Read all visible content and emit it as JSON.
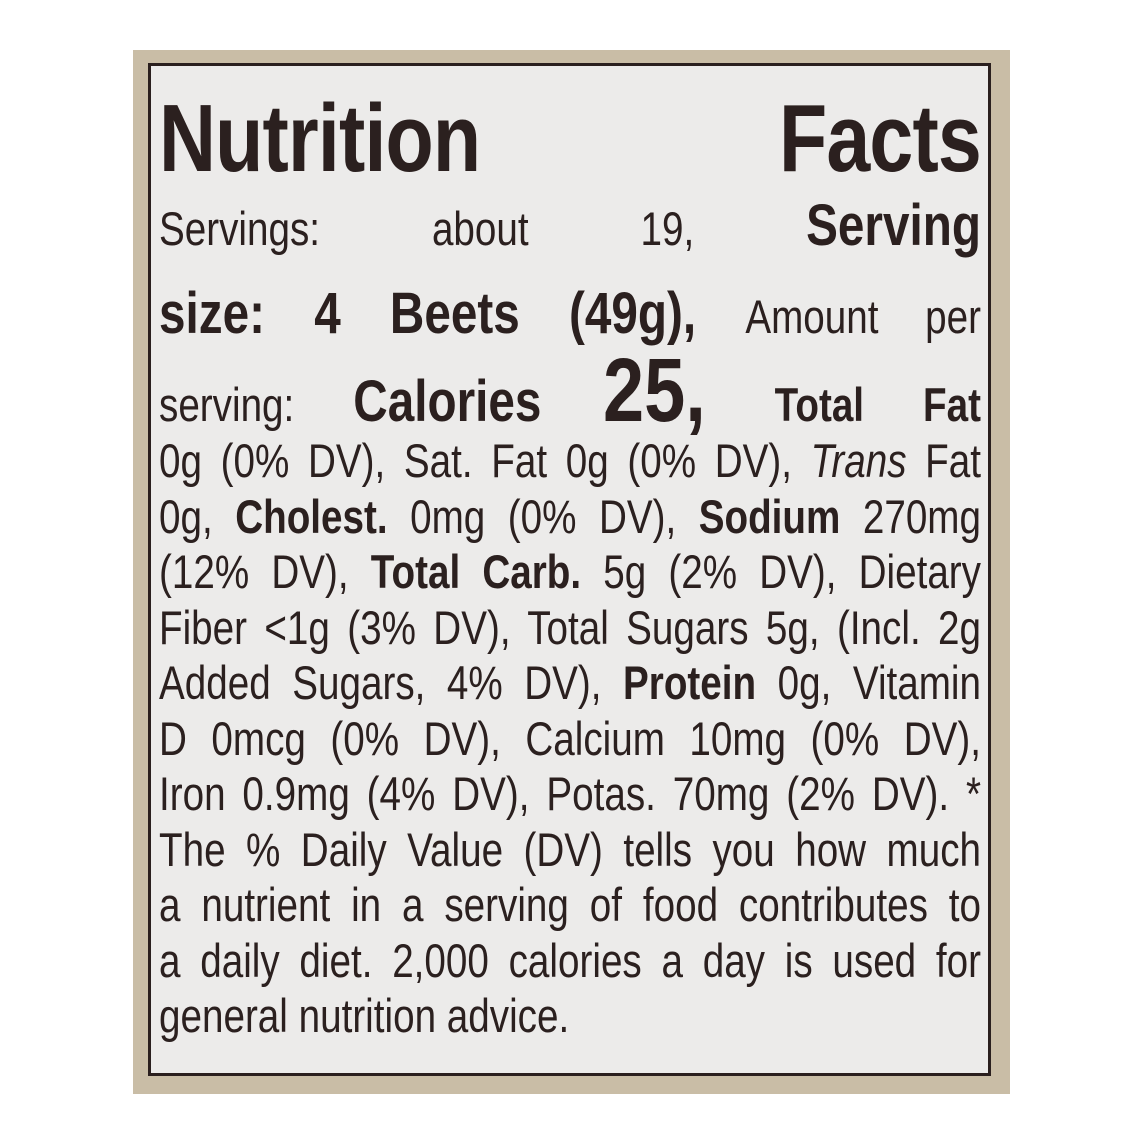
{
  "title": "Nutrition Facts",
  "lines": [
    [
      {
        "t": "Servings: about 19, "
      },
      {
        "t": "Serving",
        "c": "big"
      }
    ],
    [
      {
        "t": "size: 4 Beets (49g), ",
        "c": "big"
      },
      {
        "t": "Amount per"
      }
    ],
    [
      {
        "t": "serving: "
      },
      {
        "t": "Calories ",
        "c": "big"
      },
      {
        "t": "25, ",
        "c": "huge"
      },
      {
        "t": "Total Fat",
        "c": "b"
      }
    ],
    [
      {
        "t": "0g (0% DV), Sat. Fat 0g (0% DV), "
      },
      {
        "t": "Trans",
        "c": "i"
      },
      {
        "t": " Fat"
      }
    ],
    [
      {
        "t": "0g, "
      },
      {
        "t": "Cholest.",
        "c": "b"
      },
      {
        "t": " 0mg (0% DV), "
      },
      {
        "t": "Sodium",
        "c": "b"
      },
      {
        "t": " 270mg"
      }
    ],
    [
      {
        "t": "(12% DV), "
      },
      {
        "t": "Total Carb.",
        "c": "b"
      },
      {
        "t": " 5g (2% DV), Dietary"
      }
    ],
    [
      {
        "t": "Fiber <1g (3% DV), Total Sugars 5g, (Incl. 2g"
      }
    ],
    [
      {
        "t": "Added Sugars, 4% DV), "
      },
      {
        "t": "Protein",
        "c": "b"
      },
      {
        "t": " 0g, Vitamin"
      }
    ],
    [
      {
        "t": "D 0mcg (0% DV), Calcium 10mg (0% DV),"
      }
    ],
    [
      {
        "t": "Iron 0.9mg (4% DV), Potas. 70mg (2% DV). *"
      }
    ],
    [
      {
        "t": "The % Daily Value (DV) tells you how much"
      }
    ],
    [
      {
        "t": "a nutrient in a serving of food contributes to"
      }
    ],
    [
      {
        "t": "a daily diet. 2,000 calories a day is used for"
      }
    ],
    [
      {
        "t": "general nutrition advice.",
        "last": true
      }
    ]
  ],
  "colors": {
    "frame": "#c9bda6",
    "label_bg": "#ecebea",
    "ink": "#2b201f"
  }
}
